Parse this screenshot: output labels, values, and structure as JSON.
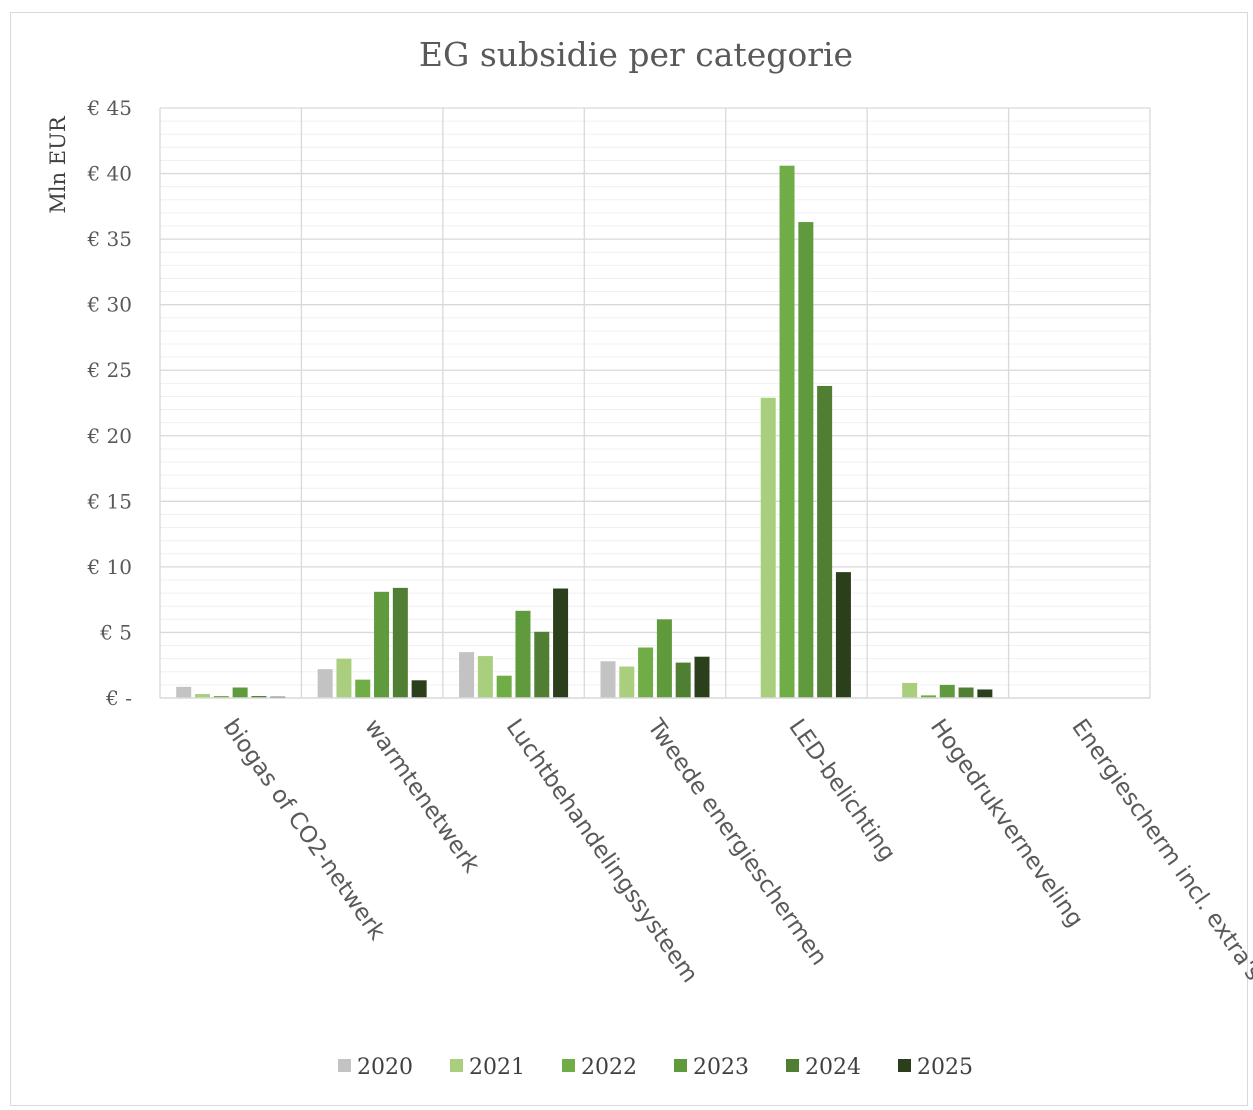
{
  "chart_data": {
    "type": "bar",
    "title": "EG subsidie per categorie",
    "ylabel": "Mln EUR",
    "xlabel": "",
    "ylim": [
      0,
      45
    ],
    "yticks": [
      0,
      5,
      10,
      15,
      20,
      25,
      30,
      35,
      40,
      45
    ],
    "ytick_labels": [
      "€ -",
      "€ 5",
      "€ 10",
      "€ 15",
      "€ 20",
      "€ 25",
      "€ 30",
      "€ 35",
      "€ 40",
      "€ 45"
    ],
    "grid": true,
    "legend_position": "bottom",
    "categories": [
      "biogas of CO2-netwerk",
      "warmtenetwerk",
      "Luchtbehandelingssysteem",
      "Tweede energieschermen",
      "LED-belichting",
      "Hogedrukverneveling",
      "Energiescherm incl. extra's"
    ],
    "series": [
      {
        "name": "2020",
        "color": "#c3c3c3",
        "values": [
          0.85,
          2.2,
          3.5,
          2.8,
          0,
          0,
          0
        ]
      },
      {
        "name": "2021",
        "color": "#a9cf7e",
        "values": [
          0.3,
          3.0,
          3.2,
          2.4,
          22.9,
          1.15,
          0
        ]
      },
      {
        "name": "2022",
        "color": "#71ad47",
        "values": [
          0.15,
          1.4,
          1.7,
          3.85,
          40.6,
          0.2,
          0
        ]
      },
      {
        "name": "2023",
        "color": "#5f9a3c",
        "values": [
          0.8,
          8.1,
          6.65,
          6.0,
          36.3,
          1.0,
          0
        ]
      },
      {
        "name": "2024",
        "color": "#507f34",
        "values": [
          0.15,
          8.4,
          5.05,
          2.7,
          23.8,
          0.8,
          0
        ]
      },
      {
        "name": "2025",
        "color": "#2b3f1c",
        "values": [
          0.1,
          1.35,
          8.35,
          3.15,
          9.6,
          0.65,
          0
        ]
      }
    ]
  }
}
